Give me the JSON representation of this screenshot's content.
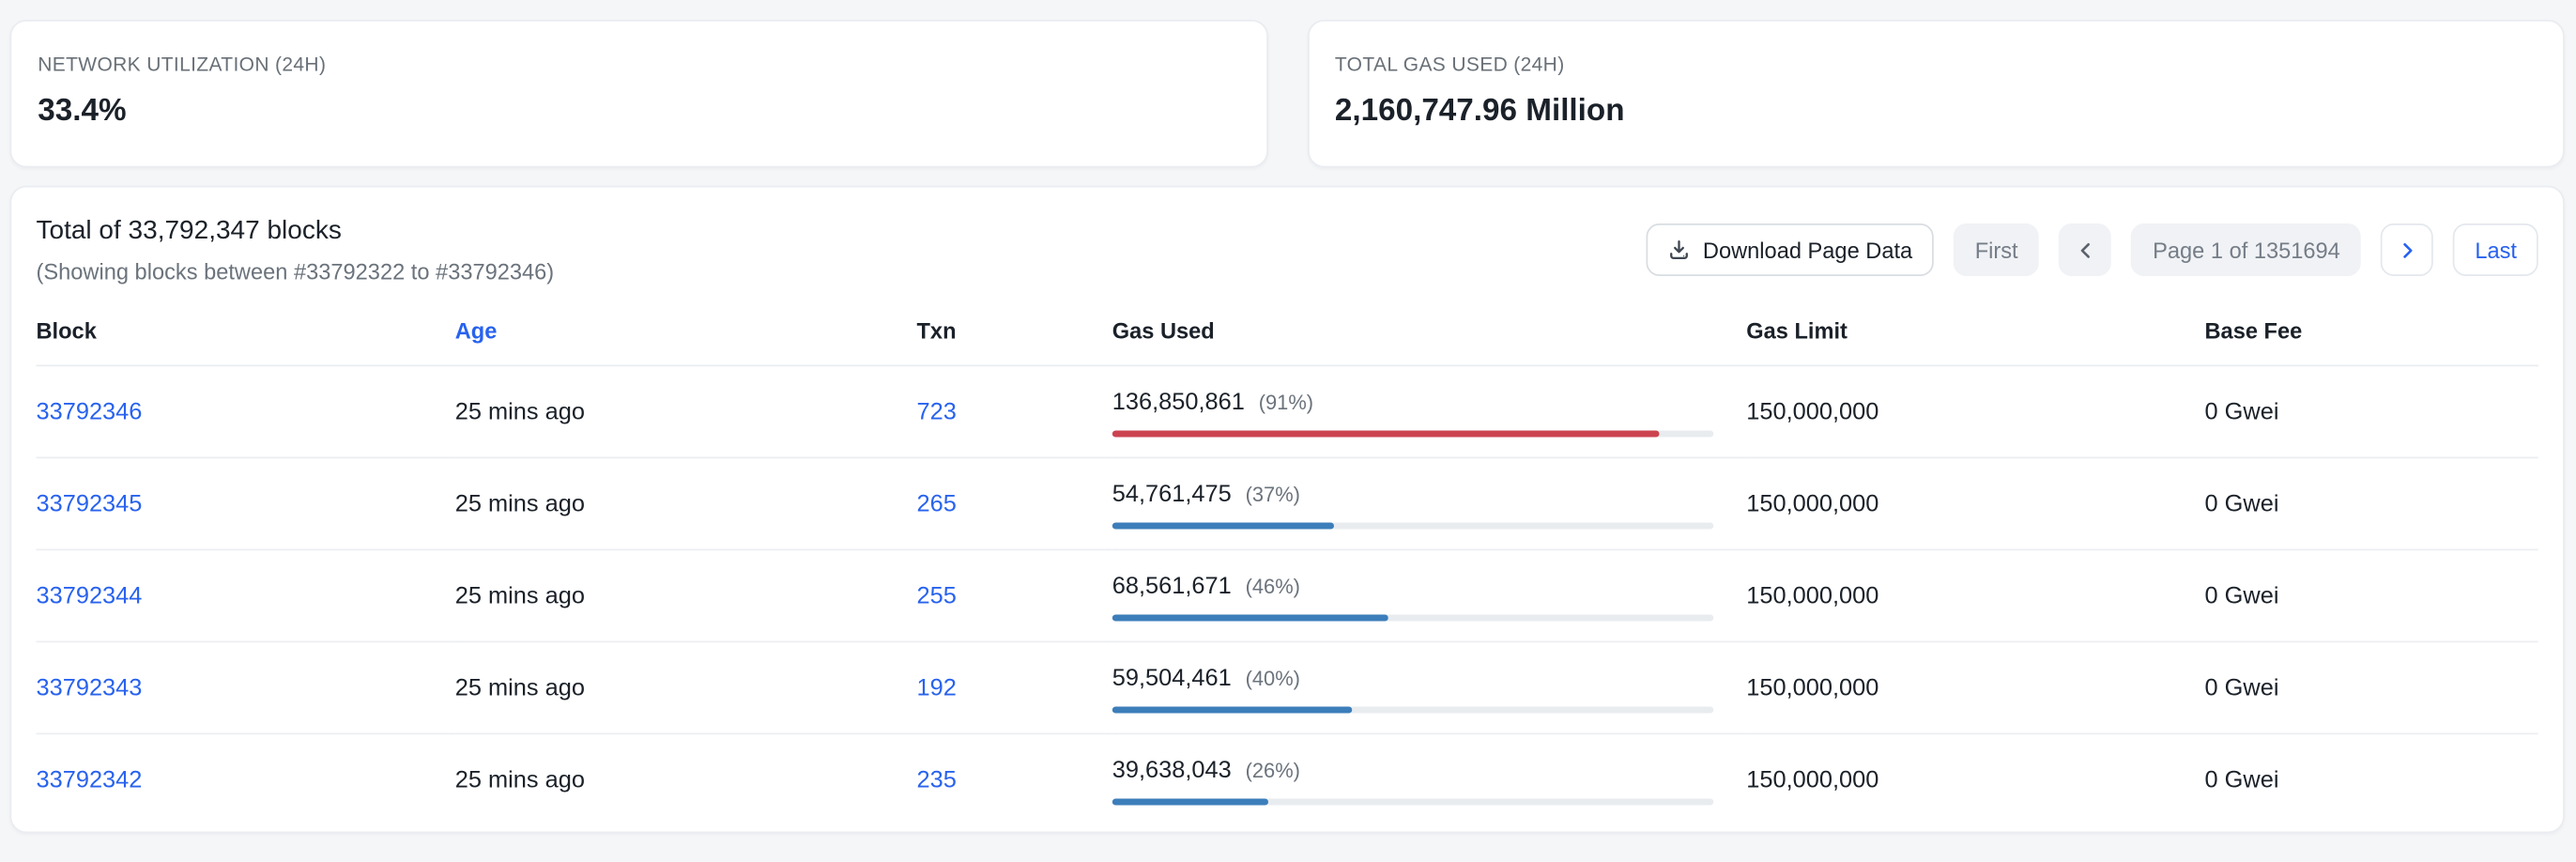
{
  "colors": {
    "link_blue": "#2862ee",
    "bar_blue": "#3c7eba",
    "bar_red": "#cc4350",
    "bar_track": "#e9ecef"
  },
  "stats": [
    {
      "label": "NETWORK UTILIZATION (24H)",
      "value": "33.4%"
    },
    {
      "label": "TOTAL GAS USED (24H)",
      "value": "2,160,747.96 Million"
    }
  ],
  "blocks_panel": {
    "title": "Total of 33,792,347 blocks",
    "subtitle": "(Showing blocks between #33792322 to #33792346)",
    "toolbar": {
      "download_label": "Download Page Data"
    },
    "pagination": {
      "first_label": "First",
      "page_label": "Page 1 of 1351694",
      "last_label": "Last"
    },
    "table": {
      "headers": [
        "Block",
        "Age",
        "Txn",
        "Gas Used",
        "Gas Limit",
        "Base Fee"
      ],
      "rows": [
        {
          "block": "33792346",
          "age": "25 mins ago",
          "txn": "723",
          "gas_used": "136,850,861",
          "gas_used_pct_label": "(91%)",
          "gas_used_pct": 91,
          "bar": "red",
          "gas_limit": "150,000,000",
          "base_fee": "0 Gwei"
        },
        {
          "block": "33792345",
          "age": "25 mins ago",
          "txn": "265",
          "gas_used": "54,761,475",
          "gas_used_pct_label": "(37%)",
          "gas_used_pct": 37,
          "bar": "blue",
          "gas_limit": "150,000,000",
          "base_fee": "0 Gwei"
        },
        {
          "block": "33792344",
          "age": "25 mins ago",
          "txn": "255",
          "gas_used": "68,561,671",
          "gas_used_pct_label": "(46%)",
          "gas_used_pct": 46,
          "bar": "blue",
          "gas_limit": "150,000,000",
          "base_fee": "0 Gwei"
        },
        {
          "block": "33792343",
          "age": "25 mins ago",
          "txn": "192",
          "gas_used": "59,504,461",
          "gas_used_pct_label": "(40%)",
          "gas_used_pct": 40,
          "bar": "blue",
          "gas_limit": "150,000,000",
          "base_fee": "0 Gwei"
        },
        {
          "block": "33792342",
          "age": "25 mins ago",
          "txn": "235",
          "gas_used": "39,638,043",
          "gas_used_pct_label": "(26%)",
          "gas_used_pct": 26,
          "bar": "blue",
          "gas_limit": "150,000,000",
          "base_fee": "0 Gwei"
        }
      ]
    }
  }
}
